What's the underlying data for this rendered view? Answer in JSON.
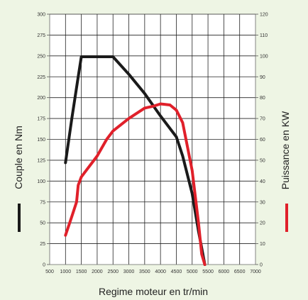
{
  "chart_data": {
    "type": "line",
    "xlabel": "Regime moteur en tr/min",
    "ylabel": "Couple en Nm",
    "y2label": "Puissance en KW",
    "xlim": [
      500,
      7000
    ],
    "ylim": [
      0,
      300
    ],
    "y2lim": [
      0,
      120
    ],
    "x_ticks": [
      500,
      1000,
      1500,
      2000,
      2500,
      3000,
      3500,
      4000,
      4500,
      5000,
      5500,
      6000,
      6500,
      7000
    ],
    "y_ticks": [
      0,
      25,
      50,
      75,
      100,
      125,
      150,
      175,
      200,
      225,
      250,
      275,
      300
    ],
    "y2_ticks": [
      0,
      10,
      20,
      30,
      40,
      50,
      60,
      70,
      80,
      90,
      100,
      110,
      120
    ],
    "grid": true,
    "legend": "side labels",
    "series": [
      {
        "name": "Couple en Nm",
        "axis": "left",
        "color": "#1a1a1a",
        "points": [
          [
            1000,
            122
          ],
          [
            1200,
            175
          ],
          [
            1400,
            225
          ],
          [
            1500,
            249
          ],
          [
            2000,
            249
          ],
          [
            2500,
            249
          ],
          [
            3000,
            228
          ],
          [
            3500,
            205
          ],
          [
            4000,
            178
          ],
          [
            4500,
            153
          ],
          [
            4700,
            130
          ],
          [
            5000,
            85
          ],
          [
            5200,
            40
          ],
          [
            5300,
            20
          ],
          [
            5400,
            0
          ]
        ]
      },
      {
        "name": "Puissance en KW",
        "axis": "right",
        "color": "#e0202a",
        "points": [
          [
            1000,
            14
          ],
          [
            1200,
            23
          ],
          [
            1350,
            30
          ],
          [
            1400,
            38
          ],
          [
            1500,
            42
          ],
          [
            2000,
            52
          ],
          [
            2300,
            60
          ],
          [
            2500,
            64
          ],
          [
            3000,
            70
          ],
          [
            3500,
            75
          ],
          [
            3800,
            76
          ],
          [
            4000,
            77
          ],
          [
            4300,
            76.5
          ],
          [
            4500,
            74
          ],
          [
            4700,
            68
          ],
          [
            5000,
            45
          ],
          [
            5200,
            20
          ],
          [
            5300,
            5
          ],
          [
            5400,
            0
          ]
        ]
      }
    ]
  }
}
